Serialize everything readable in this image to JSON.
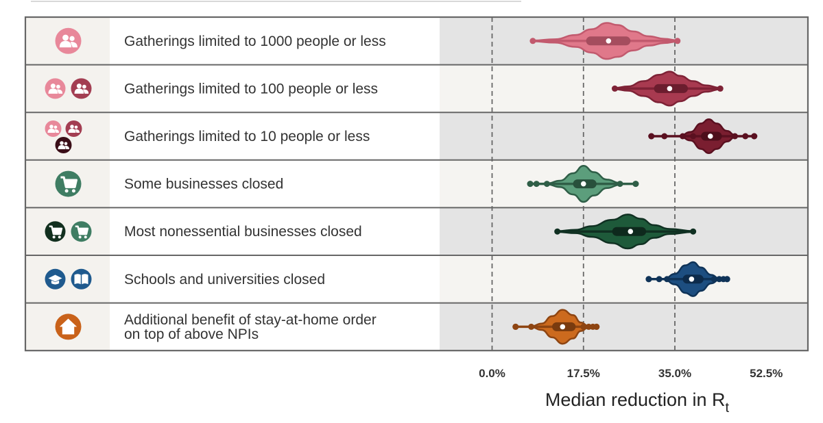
{
  "chart_data": {
    "type": "violin",
    "xlabel": "Median reduction in R",
    "xlabel_subscript": "t",
    "xlim": [
      -10,
      60.5
    ],
    "xticks": [
      0,
      17.5,
      35,
      52.5
    ],
    "xtick_labels": [
      "0.0%",
      "17.5%",
      "35.0%",
      "52.5%"
    ],
    "grid": "vertical dashed at ticks",
    "rows": [
      {
        "label_lines": [
          "Gatherings limited to 1000 people or less"
        ],
        "icons": [
          "people-icon"
        ],
        "icon_colors": [
          "#E8889A"
        ],
        "color": "#E0788A",
        "edge": "#C25A6E",
        "median": 22.3,
        "iqr": [
          18.0,
          26.5
        ],
        "range": [
          7.8,
          35.5
        ],
        "outliers": [],
        "violin_shape": [
          [
            7.8,
            0.02
          ],
          [
            12,
            0.08
          ],
          [
            16,
            0.28
          ],
          [
            19,
            0.55
          ],
          [
            22,
            0.85
          ],
          [
            24,
            0.75
          ],
          [
            27,
            0.45
          ],
          [
            30,
            0.22
          ],
          [
            33,
            0.1
          ],
          [
            35.5,
            0.03
          ]
        ]
      },
      {
        "label_lines": [
          "Gatherings limited to 100 people or less"
        ],
        "icons": [
          "people-icon",
          "people-icon"
        ],
        "icon_colors": [
          "#E8889A",
          "#A33E52"
        ],
        "color": "#A83A50",
        "edge": "#7E2236",
        "median": 34.0,
        "iqr": [
          31.0,
          37.5
        ],
        "range": [
          23.5,
          43.7
        ],
        "outliers": [],
        "violin_shape": [
          [
            23.5,
            0.03
          ],
          [
            26,
            0.1
          ],
          [
            29,
            0.35
          ],
          [
            32,
            0.65
          ],
          [
            34,
            0.8
          ],
          [
            36,
            0.6
          ],
          [
            38.5,
            0.35
          ],
          [
            41,
            0.15
          ],
          [
            43.7,
            0.03
          ]
        ]
      },
      {
        "label_lines": [
          "Gatherings limited to 10 people or less"
        ],
        "icons": [
          "people-icon",
          "people-icon",
          "people-icon"
        ],
        "icon_colors": [
          "#E8889A",
          "#A33E52",
          "#3A0E17"
        ],
        "color": "#7A1E30",
        "edge": "#5A1020",
        "median": 41.8,
        "iqr": [
          40.0,
          44.0
        ],
        "range": [
          30.5,
          50.2
        ],
        "outliers": [
          30.5,
          33.0,
          36.5,
          38.5,
          46.5,
          48.5,
          50.2
        ],
        "violin_shape": [
          [
            36,
            0.02
          ],
          [
            38,
            0.2
          ],
          [
            40,
            0.6
          ],
          [
            41.5,
            0.8
          ],
          [
            43,
            0.6
          ],
          [
            45,
            0.25
          ],
          [
            46.5,
            0.05
          ]
        ]
      },
      {
        "label_lines": [
          "Some businesses closed"
        ],
        "icons": [
          "cart-icon"
        ],
        "icon_colors": [
          "#3F7D63"
        ],
        "color": "#5C9E7C",
        "edge": "#2F5E47",
        "median": 17.5,
        "iqr": [
          15.5,
          20.0
        ],
        "range": [
          7.3,
          27.5
        ],
        "outliers": [
          7.3,
          8.5,
          10.5,
          24.5,
          27.5
        ],
        "violin_shape": [
          [
            10.5,
            0.02
          ],
          [
            13,
            0.15
          ],
          [
            15.5,
            0.5
          ],
          [
            17.5,
            0.85
          ],
          [
            19.5,
            0.55
          ],
          [
            22,
            0.2
          ],
          [
            24.5,
            0.04
          ]
        ]
      },
      {
        "label_lines": [
          "Most nonessential businesses closed"
        ],
        "icons": [
          "cart-icon",
          "cart-icon"
        ],
        "icon_colors": [
          "#12301F",
          "#3F7D63"
        ],
        "color": "#1E5A3A",
        "edge": "#103022",
        "median": 26.5,
        "iqr": [
          23.0,
          29.5
        ],
        "range": [
          12.5,
          38.5
        ],
        "outliers": [],
        "violin_shape": [
          [
            12.5,
            0.02
          ],
          [
            16,
            0.08
          ],
          [
            19,
            0.25
          ],
          [
            23,
            0.55
          ],
          [
            26,
            0.8
          ],
          [
            28.5,
            0.6
          ],
          [
            31,
            0.3
          ],
          [
            34,
            0.12
          ],
          [
            38.5,
            0.02
          ]
        ]
      },
      {
        "label_lines": [
          "Schools and universities closed"
        ],
        "icons": [
          "graduation-cap-icon",
          "book-icon"
        ],
        "icon_colors": [
          "#1F5A8E",
          "#1F5A8E"
        ],
        "color": "#1D4E80",
        "edge": "#0F3358",
        "median": 38.2,
        "iqr": [
          36.5,
          40.5
        ],
        "range": [
          30.0,
          45.0
        ],
        "outliers": [
          30.0,
          32.0,
          33.5,
          42.5,
          43.5,
          44.3,
          45.0
        ],
        "violin_shape": [
          [
            33,
            0.02
          ],
          [
            35,
            0.25
          ],
          [
            37,
            0.65
          ],
          [
            38.5,
            0.8
          ],
          [
            40,
            0.55
          ],
          [
            42,
            0.2
          ],
          [
            43.5,
            0.03
          ]
        ]
      },
      {
        "label_lines": [
          "Additional benefit of stay-at-home order",
          "on top of above NPIs"
        ],
        "icons": [
          "home-icon"
        ],
        "icon_colors": [
          "#C9621A"
        ],
        "color": "#CC6A1E",
        "edge": "#8E4512",
        "median": 13.5,
        "iqr": [
          11.5,
          16.0
        ],
        "range": [
          4.5,
          20.0
        ],
        "outliers": [
          4.5,
          7.5,
          17.5,
          18.5,
          19.3,
          20.0
        ],
        "violin_shape": [
          [
            7.5,
            0.02
          ],
          [
            9.5,
            0.15
          ],
          [
            11.5,
            0.5
          ],
          [
            13.5,
            0.8
          ],
          [
            15.5,
            0.55
          ],
          [
            17,
            0.2
          ],
          [
            18.5,
            0.03
          ]
        ]
      }
    ]
  }
}
